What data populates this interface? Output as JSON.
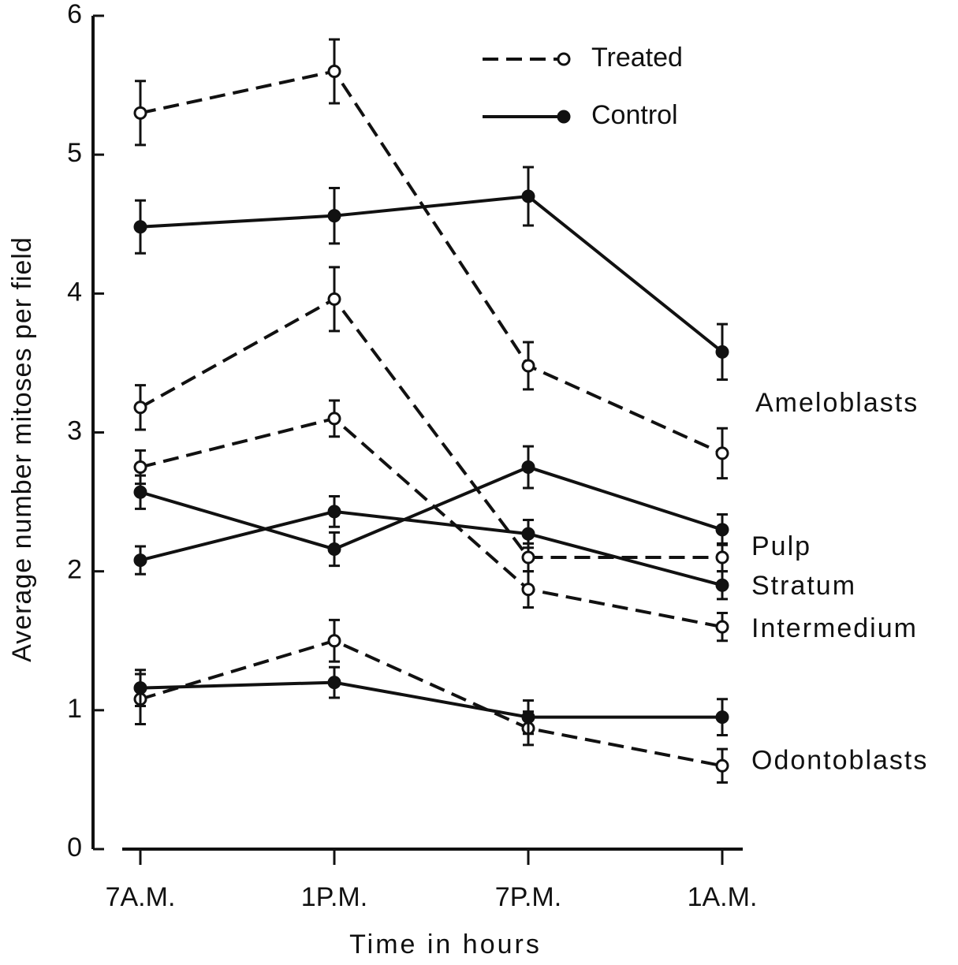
{
  "chart_data": {
    "type": "line",
    "x_label": "Time in hours",
    "y_label": "Average number mitoses per field",
    "categories": [
      "7A.M.",
      "1P.M.",
      "7P.M.",
      "1A.M."
    ],
    "ylim": [
      0,
      6
    ],
    "yticks": [
      0,
      1,
      2,
      3,
      4,
      5,
      6
    ],
    "color": "#111111",
    "series": [
      {
        "name": "Treated",
        "dashed": true,
        "marker": "open"
      },
      {
        "name": "Control",
        "dashed": false,
        "marker": "filled"
      }
    ],
    "groups": [
      {
        "label": [
          "Ameloblasts"
        ],
        "values": [
          [
            5.3,
            5.6,
            3.48,
            2.85
          ],
          [
            4.48,
            4.56,
            4.7,
            3.58
          ]
        ],
        "errors": [
          [
            0.23,
            0.23,
            0.17,
            0.18
          ],
          [
            0.19,
            0.2,
            0.21,
            0.2
          ]
        ]
      },
      {
        "label": [
          "Pulp"
        ],
        "values": [
          [
            3.18,
            3.96,
            2.1,
            2.1
          ],
          [
            2.57,
            2.16,
            2.75,
            2.3
          ]
        ],
        "errors": [
          [
            0.16,
            0.23,
            0.1,
            0.1
          ],
          [
            0.12,
            0.12,
            0.15,
            0.11
          ]
        ]
      },
      {
        "label": [
          "Stratum",
          "Intermedium"
        ],
        "values": [
          [
            2.75,
            3.1,
            1.87,
            1.6
          ],
          [
            2.08,
            2.43,
            2.27,
            1.9
          ]
        ],
        "errors": [
          [
            0.12,
            0.13,
            0.13,
            0.1
          ],
          [
            0.1,
            0.11,
            0.1,
            0.1
          ]
        ]
      },
      {
        "label": [
          "Odontoblasts"
        ],
        "values": [
          [
            1.08,
            1.5,
            0.87,
            0.6
          ],
          [
            1.16,
            1.2,
            0.95,
            0.95
          ]
        ],
        "errors": [
          [
            0.18,
            0.15,
            0.12,
            0.12
          ],
          [
            0.13,
            0.11,
            0.12,
            0.13
          ]
        ]
      }
    ]
  }
}
